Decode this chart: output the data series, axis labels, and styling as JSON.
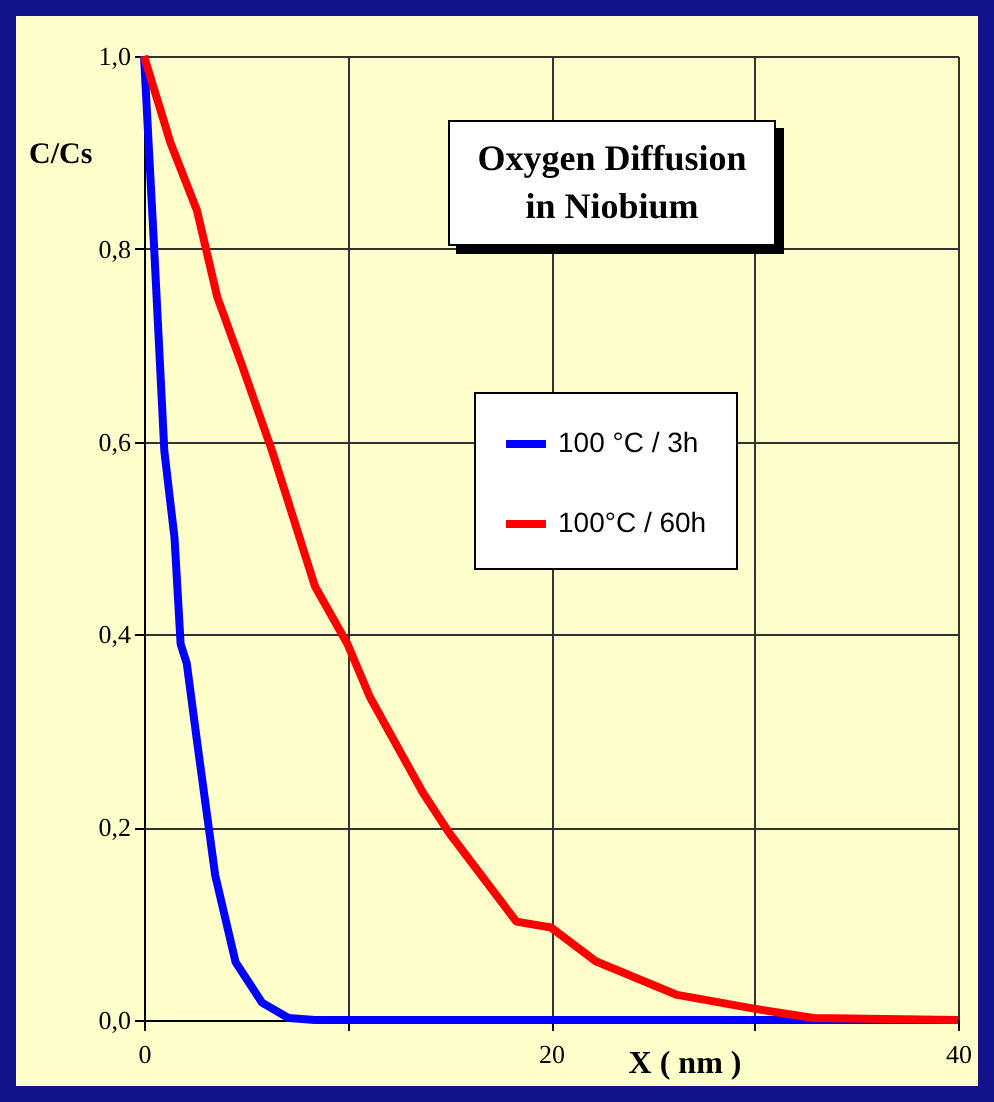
{
  "chart_data": {
    "type": "line",
    "title": "Oxygen Diffusion in Niobium",
    "xlabel": "X ( nm )",
    "ylabel": "C/Cs",
    "xlim": [
      0,
      40
    ],
    "xticks": [
      0,
      {
        "value": 10,
        "label": null
      },
      20,
      {
        "value": 30,
        "label": null
      },
      40
    ],
    "ylim": [
      0,
      1
    ],
    "yticks": [
      {
        "value": 0,
        "label": "0,0"
      },
      {
        "value": 0.2,
        "label": "0,2"
      },
      {
        "value": 0.4,
        "label": "0,4"
      },
      {
        "value": 0.6,
        "label": "0,6"
      },
      {
        "value": 0.8,
        "label": "0,8"
      },
      {
        "value": 1,
        "label": "1,0"
      }
    ],
    "grid": true,
    "legend": "right",
    "line_style": "solid",
    "series": [
      {
        "name": "100 °C / 3h",
        "color": "#0000ff",
        "x": [
          0,
          0.5,
          1,
          1.5,
          1.8,
          2.1,
          2.6,
          3.5,
          4.5,
          5.8,
          7.1,
          8.4,
          40
        ],
        "values": [
          1,
          0.8,
          0.59,
          0.5,
          0.39,
          0.37,
          0.29,
          0.15,
          0.06,
          0.018,
          0.002,
          0,
          0
        ]
      },
      {
        "name": "100°C / 60h",
        "color": "#ff0000",
        "x": [
          0,
          1.3,
          2.6,
          3.6,
          4.8,
          6.3,
          8.4,
          10,
          11.1,
          13.7,
          15,
          18.3,
          20,
          22.2,
          26.2,
          29.9,
          32.9,
          40
        ],
        "values": [
          1,
          0.91,
          0.84,
          0.75,
          0.68,
          0.59,
          0.45,
          0.39,
          0.335,
          0.236,
          0.194,
          0.102,
          0.096,
          0.061,
          0.026,
          0.012,
          0.002,
          0
        ]
      }
    ]
  }
}
